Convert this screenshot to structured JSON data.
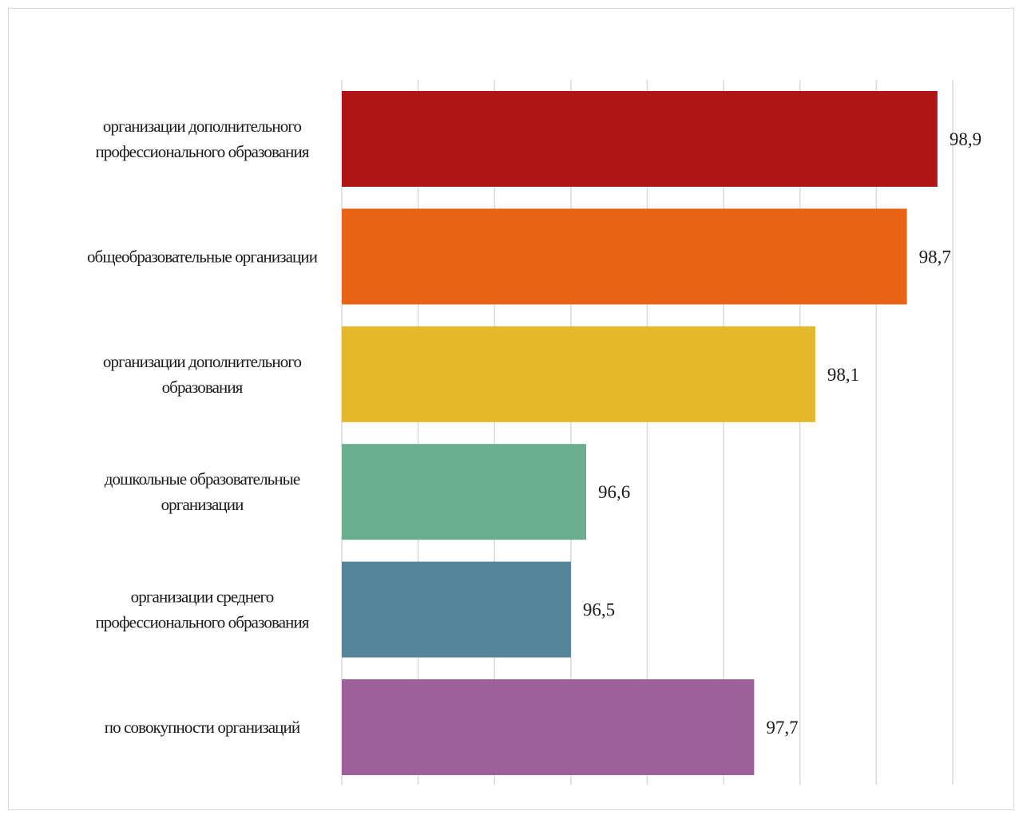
{
  "chart_data": {
    "type": "bar",
    "orientation": "horizontal",
    "title": "",
    "xlabel": "",
    "ylabel": "",
    "categories": [
      [
        "организации дополнительного",
        "профессионального образования"
      ],
      [
        "общеобразовательные организации"
      ],
      [
        "организации дополнительного",
        "образования"
      ],
      [
        "дошкольные образовательные",
        "организации"
      ],
      [
        "организации среднего",
        "профессионального образования"
      ],
      [
        "по совокупности организаций"
      ]
    ],
    "values": [
      98.9,
      98.7,
      98.1,
      96.6,
      96.5,
      97.7
    ],
    "value_labels": [
      "98,9",
      "98,7",
      "98,1",
      "96,6",
      "96,5",
      "97,7"
    ],
    "colors": [
      "#B01515",
      "#E86314",
      "#E5B72A",
      "#6BAD8F",
      "#548599",
      "#9E5F9B"
    ],
    "xlim": [
      95,
      99
    ],
    "grid": true,
    "tick_labels_visible": false,
    "legend": "none"
  }
}
